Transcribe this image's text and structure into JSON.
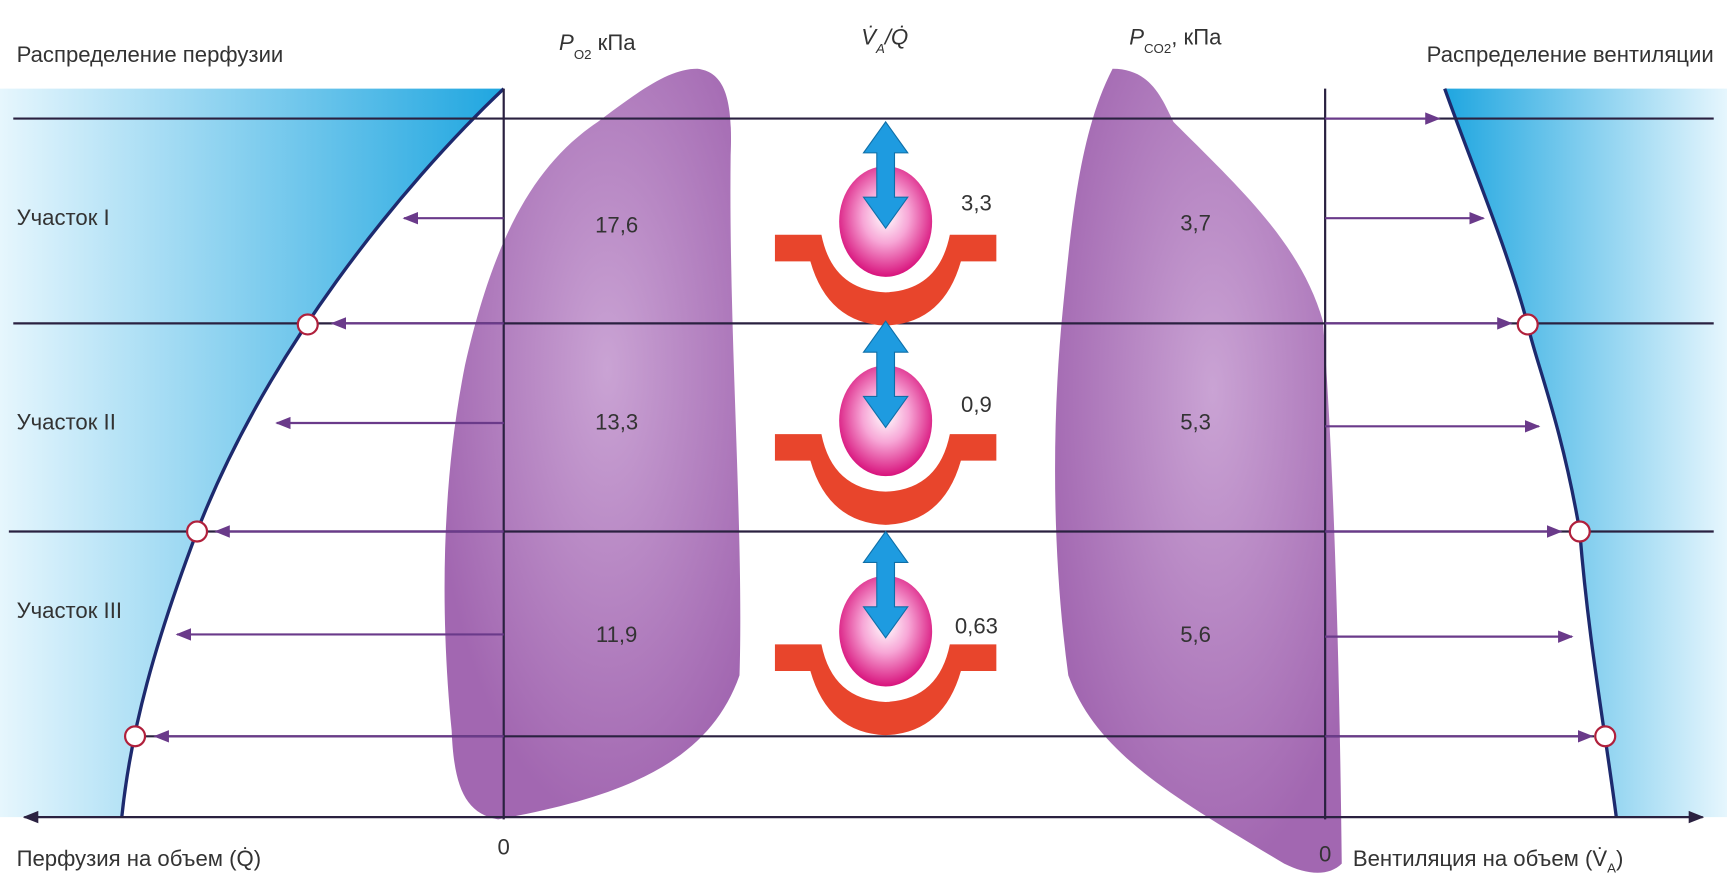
{
  "header": {
    "perfusion_title": "Распределение перфузии",
    "po2_label": {
      "symbol": "P",
      "subscript": "O2",
      "unit": " кПа"
    },
    "ratio_label": {
      "numerator": "V̇",
      "subscript": "A",
      "denominator": "/Q̇"
    },
    "pco2_label": {
      "symbol": "P",
      "subscript": "CO2",
      "unit": ", кПа"
    },
    "ventilation_title": "Распределение вентиляции"
  },
  "zones": [
    {
      "label": "Участок I",
      "po2": "17,6",
      "ratio": "3,3",
      "pco2": "3,7"
    },
    {
      "label": "Участок II",
      "po2": "13,3",
      "ratio": "0,9",
      "pco2": "5,3"
    },
    {
      "label": "Участок III",
      "po2": "11,9",
      "ratio": "0,63",
      "pco2": "5,6"
    }
  ],
  "axes": {
    "left_zero": "0",
    "right_zero": "0",
    "perfusion_axis": "Перфузия на объем (Q̇)",
    "ventilation_axis": {
      "text": "Вентиляция на объем (V̇",
      "subscript": "A",
      "close": ")"
    }
  }
}
